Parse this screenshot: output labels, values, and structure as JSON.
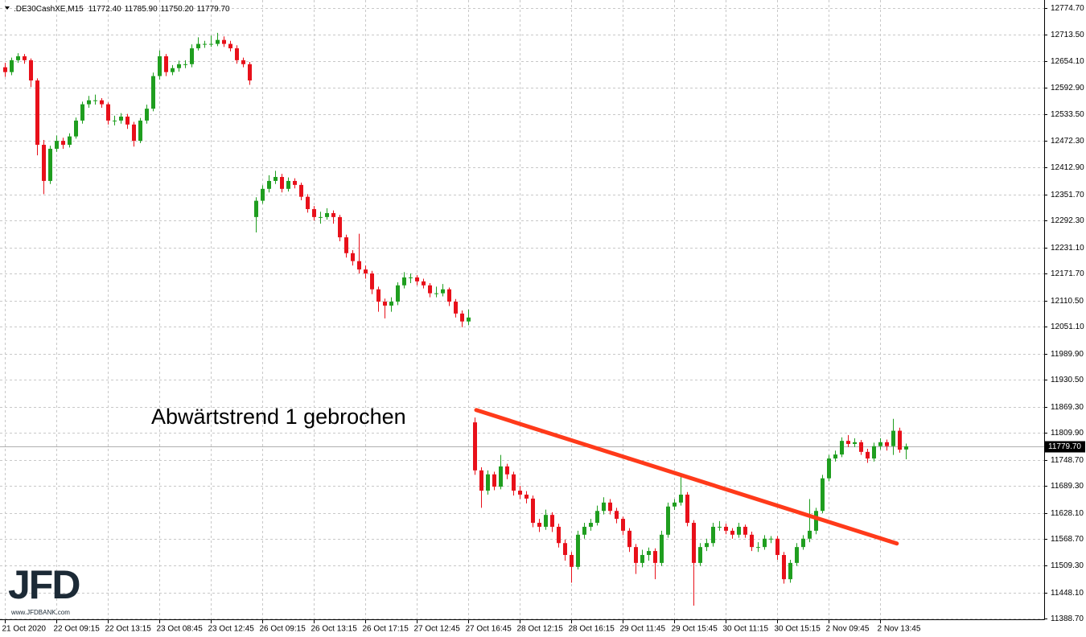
{
  "chart_data": {
    "type": "candlestick",
    "symbol": ".DE30CashXE,M15",
    "header_values": [
      "11772.40",
      "11785.90",
      "11750.20",
      "11779.70"
    ],
    "last_price_label": "11779.70",
    "annotation": "Abwärtstrend 1 gebrochen",
    "watermark": "JFD",
    "watermark_url": "www.JFDBANK.com",
    "up_color": "#1f9e1f",
    "down_color": "#e8101a",
    "grid": true,
    "ylim": [
      11387,
      12789
    ],
    "yticks": [
      {
        "value": 12774.7,
        "label": "12774.70"
      },
      {
        "value": 12713.5,
        "label": "12713.50"
      },
      {
        "value": 12654.1,
        "label": "12654.10"
      },
      {
        "value": 12592.9,
        "label": "12592.90"
      },
      {
        "value": 12533.5,
        "label": "12533.50"
      },
      {
        "value": 12472.3,
        "label": "12472.30"
      },
      {
        "value": 12412.9,
        "label": "12412.90"
      },
      {
        "value": 12351.7,
        "label": "12351.70"
      },
      {
        "value": 12292.3,
        "label": "12292.30"
      },
      {
        "value": 12231.1,
        "label": "12231.10"
      },
      {
        "value": 12171.7,
        "label": "12171.70"
      },
      {
        "value": 12110.5,
        "label": "12110.50"
      },
      {
        "value": 12051.1,
        "label": "12051.10"
      },
      {
        "value": 11989.9,
        "label": "11989.90"
      },
      {
        "value": 11930.5,
        "label": "11930.50"
      },
      {
        "value": 11869.3,
        "label": "11869.30"
      },
      {
        "value": 11809.9,
        "label": "11809.90"
      },
      {
        "value": 11748.7,
        "label": "11748.70"
      },
      {
        "value": 11689.3,
        "label": "11689.30"
      },
      {
        "value": 11628.1,
        "label": "11628.10"
      },
      {
        "value": 11568.7,
        "label": "11568.70"
      },
      {
        "value": 11509.3,
        "label": "11509.30"
      },
      {
        "value": 11448.1,
        "label": "11448.10"
      },
      {
        "value": 11388.7,
        "label": "11388.70"
      }
    ],
    "xticks": [
      {
        "value": 0,
        "label": "21 Oct 2020"
      },
      {
        "value": 8,
        "label": "22 Oct 09:15"
      },
      {
        "value": 16,
        "label": "22 Oct 13:15"
      },
      {
        "value": 24,
        "label": "23 Oct 08:45"
      },
      {
        "value": 32,
        "label": "23 Oct 12:45"
      },
      {
        "value": 40,
        "label": "26 Oct 09:15"
      },
      {
        "value": 48,
        "label": "26 Oct 13:15"
      },
      {
        "value": 56,
        "label": "26 Oct 17:15"
      },
      {
        "value": 64,
        "label": "27 Oct 12:45"
      },
      {
        "value": 72,
        "label": "27 Oct 16:45"
      },
      {
        "value": 80,
        "label": "28 Oct 12:15"
      },
      {
        "value": 88,
        "label": "28 Oct 16:15"
      },
      {
        "value": 96,
        "label": "29 Oct 11:45"
      },
      {
        "value": 104,
        "label": "29 Oct 15:45"
      },
      {
        "value": 112,
        "label": "30 Oct 11:15"
      },
      {
        "value": 120,
        "label": "30 Oct 15:15"
      },
      {
        "value": 128,
        "label": "2 Nov 09:45"
      },
      {
        "value": 136,
        "label": "2 Nov 13:45"
      }
    ],
    "trendline": {
      "x": [
        73.25,
        138.6
      ],
      "y": [
        11862,
        11559
      ],
      "color": "#ff3a1a"
    },
    "candles": [
      [
        12640,
        12650,
        12618,
        12629
      ],
      [
        12629,
        12662,
        12622,
        12656
      ],
      [
        12656,
        12672,
        12650,
        12665
      ],
      [
        12665,
        12670,
        12648,
        12656
      ],
      [
        12656,
        12660,
        12595,
        12610
      ],
      [
        12610,
        12615,
        12440,
        12464
      ],
      [
        12464,
        12475,
        12352,
        12382
      ],
      [
        12382,
        12462,
        12375,
        12455
      ],
      [
        12455,
        12485,
        12448,
        12473
      ],
      [
        12473,
        12480,
        12455,
        12464
      ],
      [
        12464,
        12490,
        12458,
        12483
      ],
      [
        12483,
        12526,
        12478,
        12519
      ],
      [
        12519,
        12562,
        12512,
        12556
      ],
      [
        12556,
        12575,
        12548,
        12565
      ],
      [
        12565,
        12578,
        12555,
        12565
      ],
      [
        12565,
        12570,
        12548,
        12556
      ],
      [
        12556,
        12560,
        12510,
        12519
      ],
      [
        12519,
        12530,
        12508,
        12519
      ],
      [
        12519,
        12536,
        12512,
        12528
      ],
      [
        12528,
        12534,
        12500,
        12510
      ],
      [
        12510,
        12516,
        12460,
        12473
      ],
      [
        12473,
        12525,
        12468,
        12519
      ],
      [
        12519,
        12555,
        12512,
        12546
      ],
      [
        12546,
        12628,
        12540,
        12620
      ],
      [
        12620,
        12678,
        12612,
        12665
      ],
      [
        12665,
        12670,
        12620,
        12629
      ],
      [
        12629,
        12645,
        12622,
        12638
      ],
      [
        12638,
        12655,
        12630,
        12647
      ],
      [
        12647,
        12656,
        12638,
        12647
      ],
      [
        12647,
        12692,
        12640,
        12683
      ],
      [
        12683,
        12708,
        12678,
        12693
      ],
      [
        12693,
        12700,
        12684,
        12693
      ],
      [
        12693,
        12712,
        12686,
        12693
      ],
      [
        12693,
        12718,
        12688,
        12702
      ],
      [
        12702,
        12710,
        12686,
        12693
      ],
      [
        12693,
        12700,
        12676,
        12683
      ],
      [
        12683,
        12690,
        12648,
        12656
      ],
      [
        12656,
        12662,
        12640,
        12647
      ],
      [
        12647,
        12652,
        12600,
        12610
      ],
      [
        12300,
        12345,
        12265,
        12337
      ],
      [
        12337,
        12372,
        12330,
        12364
      ],
      [
        12364,
        12395,
        12356,
        12382
      ],
      [
        12382,
        12405,
        12375,
        12391
      ],
      [
        12391,
        12398,
        12356,
        12364
      ],
      [
        12364,
        12390,
        12358,
        12382
      ],
      [
        12382,
        12388,
        12365,
        12373
      ],
      [
        12373,
        12378,
        12338,
        12346
      ],
      [
        12346,
        12352,
        12310,
        12318
      ],
      [
        12318,
        12325,
        12292,
        12300
      ],
      [
        12300,
        12312,
        12285,
        12300
      ],
      [
        12300,
        12320,
        12294,
        12309
      ],
      [
        12309,
        12315,
        12285,
        12300
      ],
      [
        12300,
        12305,
        12245,
        12254
      ],
      [
        12254,
        12260,
        12208,
        12218
      ],
      [
        12218,
        12225,
        12190,
        12200
      ],
      [
        12200,
        12262,
        12172,
        12181
      ],
      [
        12181,
        12190,
        12160,
        12172
      ],
      [
        12172,
        12178,
        12125,
        12136
      ],
      [
        12136,
        12142,
        12085,
        12108
      ],
      [
        12108,
        12115,
        12070,
        12099
      ],
      [
        12099,
        12118,
        12085,
        12108
      ],
      [
        12108,
        12152,
        12100,
        12145
      ],
      [
        12145,
        12175,
        12138,
        12163
      ],
      [
        12163,
        12172,
        12150,
        12163
      ],
      [
        12163,
        12168,
        12145,
        12154
      ],
      [
        12154,
        12160,
        12138,
        12145
      ],
      [
        12145,
        12150,
        12118,
        12127
      ],
      [
        12127,
        12142,
        12118,
        12127
      ],
      [
        12127,
        12148,
        12120,
        12136
      ],
      [
        12136,
        12140,
        12098,
        12108
      ],
      [
        12108,
        12114,
        12072,
        12081
      ],
      [
        12081,
        12088,
        12050,
        12063
      ],
      [
        12063,
        12090,
        12055,
        12072
      ],
      [
        11834,
        11845,
        11715,
        11725
      ],
      [
        11725,
        11732,
        11640,
        11679
      ],
      [
        11679,
        11725,
        11670,
        11716
      ],
      [
        11716,
        11722,
        11680,
        11688
      ],
      [
        11688,
        11760,
        11682,
        11734
      ],
      [
        11734,
        11740,
        11705,
        11716
      ],
      [
        11716,
        11722,
        11668,
        11679
      ],
      [
        11679,
        11690,
        11660,
        11670
      ],
      [
        11670,
        11678,
        11650,
        11661
      ],
      [
        11661,
        11668,
        11596,
        11606
      ],
      [
        11606,
        11615,
        11585,
        11597
      ],
      [
        11597,
        11636,
        11590,
        11624
      ],
      [
        11624,
        11630,
        11585,
        11597
      ],
      [
        11597,
        11604,
        11550,
        11560
      ],
      [
        11560,
        11568,
        11520,
        11533
      ],
      [
        11533,
        11540,
        11470,
        11506
      ],
      [
        11506,
        11588,
        11500,
        11579
      ],
      [
        11579,
        11606,
        11570,
        11597
      ],
      [
        11597,
        11615,
        11588,
        11606
      ],
      [
        11606,
        11645,
        11600,
        11633
      ],
      [
        11633,
        11664,
        11625,
        11652
      ],
      [
        11652,
        11660,
        11625,
        11633
      ],
      [
        11633,
        11640,
        11605,
        11615
      ],
      [
        11615,
        11620,
        11578,
        11588
      ],
      [
        11588,
        11594,
        11540,
        11551
      ],
      [
        11551,
        11558,
        11490,
        11515
      ],
      [
        11515,
        11545,
        11505,
        11533
      ],
      [
        11533,
        11550,
        11520,
        11542
      ],
      [
        11542,
        11548,
        11478,
        11515
      ],
      [
        11515,
        11588,
        11508,
        11579
      ],
      [
        11579,
        11652,
        11572,
        11643
      ],
      [
        11643,
        11660,
        11635,
        11652
      ],
      [
        11652,
        11710,
        11645,
        11670
      ],
      [
        11670,
        11676,
        11598,
        11606
      ],
      [
        11606,
        11612,
        11418,
        11515
      ],
      [
        11515,
        11560,
        11508,
        11551
      ],
      [
        11551,
        11570,
        11542,
        11560
      ],
      [
        11560,
        11606,
        11552,
        11597
      ],
      [
        11597,
        11610,
        11588,
        11597
      ],
      [
        11597,
        11604,
        11580,
        11588
      ],
      [
        11588,
        11594,
        11570,
        11579
      ],
      [
        11579,
        11606,
        11572,
        11597
      ],
      [
        11597,
        11602,
        11572,
        11579
      ],
      [
        11579,
        11586,
        11542,
        11551
      ],
      [
        11551,
        11562,
        11540,
        11551
      ],
      [
        11551,
        11578,
        11545,
        11570
      ],
      [
        11570,
        11576,
        11560,
        11570
      ],
      [
        11570,
        11576,
        11522,
        11533
      ],
      [
        11533,
        11540,
        11468,
        11478
      ],
      [
        11478,
        11522,
        11470,
        11515
      ],
      [
        11515,
        11560,
        11508,
        11551
      ],
      [
        11551,
        11578,
        11545,
        11570
      ],
      [
        11570,
        11660,
        11562,
        11588
      ],
      [
        11588,
        11640,
        11580,
        11633
      ],
      [
        11633,
        11715,
        11628,
        11707
      ],
      [
        11707,
        11760,
        11700,
        11752
      ],
      [
        11752,
        11770,
        11745,
        11761
      ],
      [
        11761,
        11800,
        11755,
        11792
      ],
      [
        11792,
        11805,
        11778,
        11785
      ],
      [
        11785,
        11798,
        11778,
        11789
      ],
      [
        11789,
        11794,
        11760,
        11767
      ],
      [
        11767,
        11774,
        11742,
        11752
      ],
      [
        11752,
        11788,
        11745,
        11780
      ],
      [
        11780,
        11798,
        11772,
        11789
      ],
      [
        11789,
        11795,
        11770,
        11780
      ],
      [
        11780,
        11842,
        11760,
        11815
      ],
      [
        11815,
        11822,
        11765,
        11772
      ],
      [
        11772.4,
        11785.9,
        11750.2,
        11779.7
      ]
    ]
  }
}
